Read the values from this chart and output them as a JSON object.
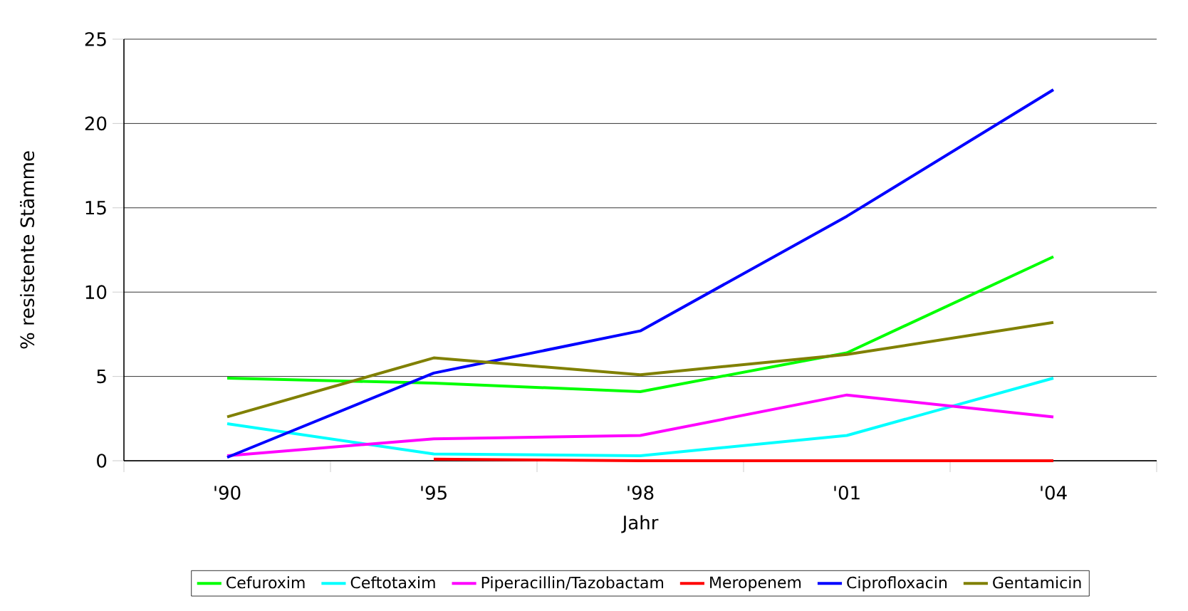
{
  "chart_data": {
    "type": "line",
    "xlabel": "Jahr",
    "ylabel": "% resistente Stämme",
    "categories": [
      "'90",
      "'95",
      "'98",
      "'01",
      "'04"
    ],
    "series": [
      {
        "name": "Cefuroxim",
        "color": "#00ff00",
        "values": [
          4.9,
          4.6,
          4.1,
          6.4,
          12.1
        ]
      },
      {
        "name": "Ceftotaxim",
        "color": "#00ffff",
        "values": [
          2.2,
          0.4,
          0.3,
          1.5,
          4.9
        ]
      },
      {
        "name": "Piperacillin/Tazobactam",
        "color": "#ff00ff",
        "values": [
          0.3,
          1.3,
          1.5,
          3.9,
          2.6
        ]
      },
      {
        "name": "Meropenem",
        "color": "#ff0000",
        "values": [
          null,
          0.1,
          0,
          0,
          0
        ]
      },
      {
        "name": "Ciprofloxacin",
        "color": "#0000ff",
        "values": [
          0.2,
          5.2,
          7.7,
          14.5,
          22.0
        ]
      },
      {
        "name": "Gentamicin",
        "color": "#808000",
        "values": [
          2.6,
          6.1,
          5.1,
          6.3,
          8.2
        ]
      }
    ],
    "ylim": [
      0,
      25
    ],
    "yticks": [
      0,
      5,
      10,
      15,
      20,
      25
    ],
    "grid": "y",
    "legend": "bottom",
    "marker": "none",
    "line_style": "solid"
  }
}
